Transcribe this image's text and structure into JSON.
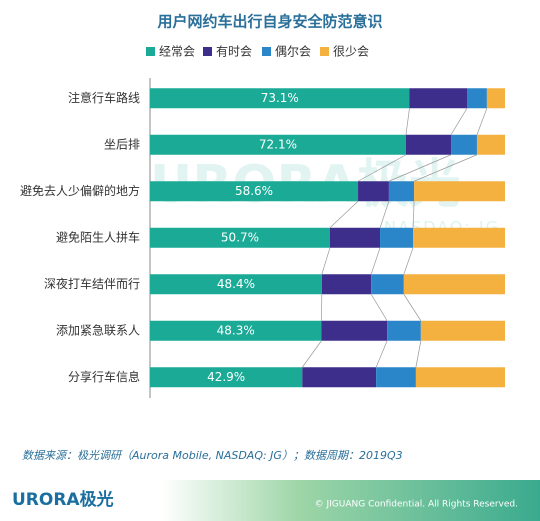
{
  "chart_data": {
    "type": "stacked_bar_horizontal",
    "title": "用户网约车出行自身安全防范意识",
    "categories": [
      "注意行车路线",
      "坐后排",
      "避免去人少偏僻的地方",
      "避免陌生人拼车",
      "深夜打车结伴而行",
      "添加紧急联系人",
      "分享行车信息"
    ],
    "series": [
      {
        "name": "经常会",
        "color": "#1aaa96",
        "values": [
          73.1,
          72.1,
          58.6,
          50.7,
          48.4,
          48.3,
          42.9
        ],
        "value_labels": [
          "73.1%",
          "72.1%",
          "58.6%",
          "50.7%",
          "48.4%",
          "48.3%",
          "42.9%"
        ]
      },
      {
        "name": "有时会",
        "color": "#3d2e8c",
        "values": [
          16.2,
          12.7,
          8.7,
          14.1,
          13.9,
          18.5,
          20.8
        ]
      },
      {
        "name": "偶尔会",
        "color": "#2a86c8",
        "values": [
          5.6,
          7.3,
          7.1,
          9.3,
          9.2,
          9.5,
          11.2
        ]
      },
      {
        "name": "很少会",
        "color": "#f5b140",
        "values": [
          5.1,
          7.9,
          25.6,
          25.9,
          28.5,
          23.7,
          25.1
        ]
      }
    ],
    "xlim": [
      0,
      100
    ],
    "legend": "top"
  },
  "watermark": {
    "brand": "URORA极光",
    "ticker": "NASDAQ: JG"
  },
  "source": "数据来源：极光调研（Aurora Mobile, NASDAQ: JG）；数据周期：2019Q3",
  "footer": {
    "logo": "URORA极光",
    "copyright": "© JIGUANG Confidential. All Rights Reserved."
  }
}
